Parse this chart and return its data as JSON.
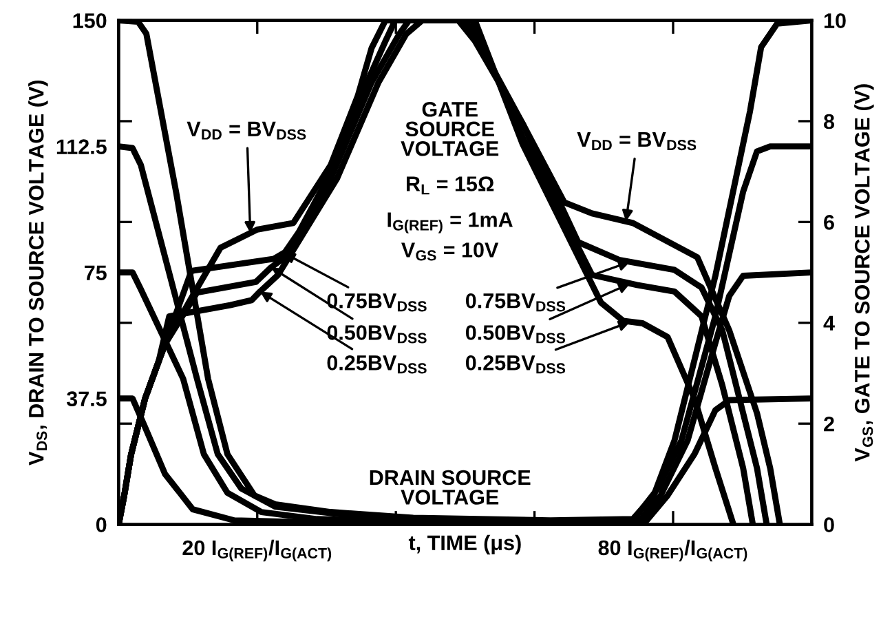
{
  "chart_data": {
    "type": "line",
    "xlabel": "t, TIME (μs)",
    "ylabel": "V$_{DS}$, DRAIN TO SOURCE VOLTAGE (V)",
    "y2label": "V$_{GS}$, GATE TO SOURCE VOLTAGE (V)",
    "xlim": [
      0,
      100
    ],
    "xticks": [
      {
        "value": 20,
        "label": "20 I$_{G(REF)}$/I$_{G(ACT)}$"
      },
      {
        "value": 40,
        "label": null
      },
      {
        "value": 60,
        "label": null
      },
      {
        "value": 80,
        "label": "80 I$_{G(REF)}$/I$_{G(ACT)}$"
      }
    ],
    "ylim": [
      0,
      150
    ],
    "yticks": [
      0,
      37.5,
      75,
      112.5,
      150
    ],
    "y2lim": [
      0,
      10
    ],
    "y2ticks": [
      0,
      2,
      4,
      6,
      8,
      10
    ],
    "grid": false,
    "legend": false,
    "marker": "none",
    "line_style": "solid",
    "series": [
      {
        "color": "#000000",
        "x": [
          0,
          2.8,
          4.0,
          8.3,
          12.9,
          15.7,
          19.6,
          22.6,
          30.6,
          42.5,
          62.3,
          74.2,
          77.2,
          80.2,
          86.1,
          91.1,
          92.7,
          95.0,
          100
        ],
        "values": [
          150,
          149.6,
          146,
          98.8,
          43.4,
          20.9,
          8.6,
          6,
          3.7,
          2,
          1.2,
          1.6,
          8.6,
          25,
          74,
          123,
          142,
          149,
          150
        ]
      },
      {
        "color": "#000000",
        "x": [
          0,
          2.0,
          3.2,
          11.3,
          14.3,
          17.7,
          22.6,
          32.5,
          42.5,
          62.3,
          74.2,
          77.8,
          81.2,
          86.1,
          90.1,
          92.1,
          94.0,
          100
        ],
        "values": [
          112.5,
          112,
          107,
          43.4,
          20.9,
          10.7,
          5.3,
          2.9,
          1.6,
          1.0,
          1.2,
          10.7,
          25,
          62,
          99,
          111,
          112.5,
          112.5
        ]
      },
      {
        "color": "#000000",
        "x": [
          0,
          2.0,
          3.2,
          9.3,
          12.3,
          15.7,
          20.6,
          28.6,
          42.5,
          62.3,
          75.2,
          78.2,
          82.1,
          86.1,
          88.1,
          90.1,
          100
        ],
        "values": [
          75,
          75,
          70,
          43.4,
          20.9,
          9.4,
          3.7,
          1.6,
          0.8,
          0.6,
          1.2,
          8.6,
          25,
          54,
          68,
          74,
          75
        ]
      },
      {
        "color": "#000000",
        "x": [
          0,
          2.0,
          3.8,
          6.7,
          10.7,
          16.7,
          32.5,
          62.3,
          76.2,
          79.2,
          83.1,
          86.1,
          88.1,
          100
        ],
        "values": [
          37.5,
          37.5,
          29,
          15,
          4.5,
          1.2,
          0.4,
          0.3,
          1.2,
          8.6,
          21,
          34,
          37,
          37.5
        ]
      },
      {
        "color": "#000000",
        "axis": "y2",
        "x": [
          0,
          0.8,
          1.8,
          3.8,
          6.7,
          10.7,
          14.7,
          20.0,
          25.2,
          30.6,
          34.5,
          36.5,
          38.5,
          49.0,
          51.4,
          58.3,
          64.3,
          68.3,
          74.2,
          83.5,
          88.1,
          92.1,
          94.0,
          95.4
        ],
        "values": [
          0,
          0.57,
          1.39,
          2.49,
          3.58,
          4.54,
          5.49,
          5.85,
          5.98,
          7.13,
          8.5,
          9.45,
          10,
          10,
          9.59,
          7.95,
          6.39,
          6.17,
          5.98,
          5.3,
          3.85,
          2.21,
          1.12,
          0
        ]
      },
      {
        "color": "#000000",
        "axis": "y2",
        "x": [
          0,
          0.8,
          1.8,
          3.8,
          6.7,
          10.5,
          22.4,
          24.0,
          26.0,
          29.6,
          34.5,
          38.5,
          39.9,
          50.0,
          52.4,
          58.3,
          66.3,
          72.2,
          80.2,
          84.1,
          87.1,
          90.1,
          92.1,
          93.5
        ],
        "values": [
          0,
          0.57,
          1.39,
          2.49,
          3.58,
          5.03,
          5.27,
          5.4,
          5.8,
          6.72,
          8.36,
          9.59,
          10,
          10,
          9.45,
          7.95,
          5.6,
          5.25,
          5.05,
          4.7,
          3.85,
          2.21,
          1.12,
          0
        ]
      },
      {
        "color": "#000000",
        "axis": "y2",
        "x": [
          0,
          0.8,
          1.8,
          3.8,
          6.7,
          11.3,
          19.8,
          22.0,
          24.6,
          30.6,
          36.5,
          40.5,
          41.9,
          51.0,
          58.3,
          68.3,
          74.8,
          80.2,
          84.1,
          87.1,
          90.1,
          91.5
        ],
        "values": [
          0,
          0.57,
          1.39,
          2.49,
          3.58,
          4.6,
          4.81,
          5.1,
          5.36,
          6.86,
          8.77,
          9.73,
          10,
          10,
          7.68,
          4.95,
          4.75,
          4.62,
          4.13,
          2.76,
          1.12,
          0
        ]
      },
      {
        "color": "#000000",
        "axis": "y2",
        "x": [
          0,
          0.8,
          1.8,
          3.8,
          5.8,
          7.3,
          16.1,
          19.2,
          20.4,
          23.0,
          31.5,
          37.5,
          41.5,
          43.8,
          51.4,
          58.3,
          69.6,
          72.8,
          75.6,
          79.2,
          83.1,
          86.1,
          88.7
        ],
        "values": [
          0,
          0.57,
          1.39,
          2.49,
          3.25,
          4.13,
          4.35,
          4.45,
          4.62,
          4.95,
          6.86,
          8.77,
          9.73,
          10,
          10,
          7.54,
          4.4,
          4.04,
          3.99,
          3.72,
          2.49,
          1.12,
          0
        ]
      }
    ],
    "annotations": [
      "GATE\nSOURCE\nVOLTAGE",
      "R$_{L}$ = 15Ω",
      "I$_{G(REF)}$ = 1mA",
      "V$_{GS}$ = 10V",
      "DRAIN SOURCE\nVOLTAGE",
      {
        "text": "V$_{DD}$ = BV$_{DSS}$",
        "x": 19.0,
        "y": 86.7
      },
      {
        "text": "0.75BV$_{DSS}$",
        "x": 23.8,
        "y": 80.8
      },
      {
        "text": "0.50BV$_{DSS}$",
        "x": 22.0,
        "y": 76.5
      },
      {
        "text": "0.25BV$_{DSS}$",
        "x": 20.4,
        "y": 69.3
      },
      {
        "text": "0.75BV$_{DSS}$",
        "x": 73.8,
        "y": 78.2
      },
      {
        "text": "0.50BV$_{DSS}$",
        "x": 73.8,
        "y": 71.7
      },
      {
        "text": "0.25BV$_{DSS}$",
        "x": 73.8,
        "y": 60.3
      },
      {
        "text": "V$_{DD}$ = BV$_{DSS}$",
        "x": 73.2,
        "y": 90.2
      }
    ]
  }
}
